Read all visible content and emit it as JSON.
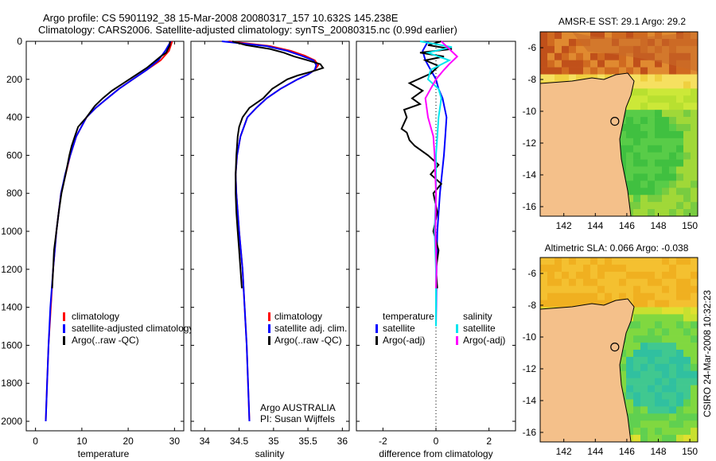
{
  "header": {
    "title_line1": "Argo profile: CS 5901192_38 15-Mar-2008 20080317_157 10.632S 145.238E",
    "title_line2": "Climatology: CARS2006. Satellite-adjusted climatology: synTS_20080315.nc (0.99d earlier)"
  },
  "colors": {
    "climatology": "#ff0000",
    "satellite": "#0000ff",
    "argo": "#000000",
    "temp_satellite_diff": "#0000ff",
    "sal_satellite_diff": "#00e5ee",
    "sal_argo_diff": "#ff00ff",
    "land": "#f4c08a"
  },
  "credit": {
    "institution": "Argo AUSTRALIA",
    "pi": "PI: Susan Wijffels",
    "timestamp": "CSIRO 24-Mar-2008 10:32:23"
  },
  "chart_data": [
    {
      "type": "line",
      "id": "temperature_profile",
      "xlabel": "temperature",
      "ylabel": "",
      "xlim": [
        -2,
        32
      ],
      "ylim": [
        2050,
        0
      ],
      "xticks": [
        0,
        10,
        20,
        30
      ],
      "yticks": [
        0,
        200,
        400,
        600,
        800,
        1000,
        1200,
        1400,
        1600,
        1800,
        2000
      ],
      "legend": [
        "climatology",
        "satellite-adjusted climatology",
        "Argo(..raw -QC)"
      ],
      "series": [
        {
          "name": "climatology",
          "color": "#ff0000",
          "depth": [
            0,
            50,
            100,
            150,
            200,
            250,
            300,
            350,
            400,
            500,
            600,
            700,
            800,
            1000,
            1200,
            1400,
            1600,
            1800,
            2000
          ],
          "values": [
            29.5,
            28.8,
            27.0,
            24.0,
            21.0,
            18.0,
            15.5,
            13.0,
            11.0,
            8.8,
            7.5,
            6.5,
            5.5,
            4.5,
            3.8,
            3.3,
            2.8,
            2.5,
            2.2
          ]
        },
        {
          "name": "satellite-adjusted climatology",
          "color": "#0000ff",
          "depth": [
            0,
            50,
            100,
            150,
            200,
            250,
            300,
            350,
            400,
            500,
            600,
            700,
            800,
            1000,
            1200,
            1400,
            1600,
            1800,
            2000
          ],
          "values": [
            29.2,
            28.0,
            26.5,
            24.0,
            21.0,
            18.0,
            15.5,
            13.0,
            11.0,
            8.8,
            7.5,
            6.4,
            5.5,
            4.5,
            3.8,
            3.2,
            2.8,
            2.5,
            2.2
          ]
        },
        {
          "name": "Argo(..raw -QC)",
          "color": "#000000",
          "depth": [
            0,
            20,
            60,
            80,
            100,
            140,
            180,
            220,
            260,
            300,
            340,
            400,
            450,
            500,
            550,
            600,
            700,
            800,
            900,
            1000,
            1100,
            1200,
            1300
          ],
          "values": [
            29.0,
            29.0,
            28.2,
            27.0,
            26.0,
            24.0,
            21.5,
            19.0,
            16.5,
            14.5,
            12.8,
            11.0,
            9.2,
            8.5,
            7.8,
            7.3,
            6.5,
            5.6,
            5.0,
            4.5,
            4.0,
            3.8,
            3.6
          ]
        }
      ]
    },
    {
      "type": "line",
      "id": "salinity_profile",
      "xlabel": "salinity",
      "xlim": [
        33.8,
        36.1
      ],
      "ylim": [
        2050,
        0
      ],
      "xticks": [
        34,
        34.5,
        35,
        35.5,
        36
      ],
      "legend": [
        "climatology",
        "satellite adj. clim.",
        "Argo(..raw -QC)"
      ],
      "series": [
        {
          "name": "climatology",
          "color": "#ff0000",
          "depth": [
            0,
            25,
            50,
            75,
            100,
            125,
            150,
            175,
            200,
            250,
            300,
            350,
            400,
            500,
            600,
            700,
            800,
            1000,
            1200,
            1400,
            1600,
            1800,
            2000
          ],
          "values": [
            34.35,
            34.95,
            35.25,
            35.45,
            35.6,
            35.65,
            35.6,
            35.5,
            35.35,
            35.1,
            34.9,
            34.75,
            34.62,
            34.52,
            34.47,
            34.45,
            34.46,
            34.5,
            34.55,
            34.58,
            34.61,
            34.63,
            34.65
          ]
        },
        {
          "name": "satellite adj. clim.",
          "color": "#0000ff",
          "depth": [
            0,
            25,
            50,
            75,
            100,
            125,
            150,
            175,
            200,
            250,
            300,
            350,
            400,
            500,
            600,
            700,
            800,
            1000,
            1200,
            1400,
            1600,
            1800,
            2000
          ],
          "values": [
            34.25,
            34.9,
            35.2,
            35.4,
            35.58,
            35.62,
            35.6,
            35.5,
            35.35,
            35.1,
            34.9,
            34.75,
            34.62,
            34.52,
            34.47,
            34.45,
            34.46,
            34.5,
            34.55,
            34.58,
            34.61,
            34.63,
            34.65
          ]
        },
        {
          "name": "Argo(..raw -QC)",
          "color": "#000000",
          "depth": [
            0,
            20,
            40,
            60,
            80,
            100,
            120,
            140,
            160,
            180,
            200,
            250,
            300,
            350,
            400,
            450,
            500,
            600,
            700,
            800,
            900,
            1000,
            1100,
            1200,
            1300
          ],
          "values": [
            34.4,
            34.6,
            34.95,
            35.15,
            35.3,
            35.5,
            35.68,
            35.72,
            35.55,
            35.35,
            35.2,
            34.98,
            34.85,
            34.65,
            34.55,
            34.5,
            34.48,
            34.46,
            34.45,
            34.45,
            34.46,
            34.48,
            34.5,
            34.52,
            34.54
          ]
        }
      ]
    },
    {
      "type": "line",
      "id": "difference_profile",
      "xlabel": "difference from climatology",
      "xlim": [
        -3,
        3
      ],
      "ylim": [
        2050,
        0
      ],
      "xticks": [
        -2,
        0,
        2
      ],
      "legend_titles": [
        "temperature",
        "salinity"
      ],
      "legend": [
        "satellite",
        "Argo(-adj)",
        "satellite",
        "Argo(-adj)"
      ],
      "series": [
        {
          "name": "temperature satellite",
          "color": "#0000ff",
          "depth": [
            0,
            50,
            100,
            150,
            200,
            250,
            300,
            400,
            500,
            600,
            800,
            1000,
            1200,
            1400,
            1500
          ],
          "values": [
            -0.3,
            -0.5,
            -0.4,
            -0.2,
            0,
            0.1,
            0.25,
            0.4,
            0.35,
            0.3,
            0.15,
            0.05,
            0.02,
            0.01,
            0
          ]
        },
        {
          "name": "temperature Argo(-adj)",
          "color": "#000000",
          "depth": [
            0,
            20,
            40,
            60,
            80,
            100,
            130,
            170,
            220,
            260,
            300,
            330,
            360,
            400,
            430,
            460,
            480,
            520,
            550,
            600,
            650,
            700,
            750,
            800,
            900,
            1000,
            1100,
            1200,
            1300
          ],
          "values": [
            0.2,
            -0.3,
            0.6,
            -0.6,
            0.3,
            -0.4,
            0.1,
            -0.2,
            -1.0,
            -0.5,
            -0.9,
            -0.6,
            -1.2,
            -1.1,
            -1.2,
            -1.3,
            -1.1,
            -1.0,
            -0.8,
            -0.3,
            0.1,
            -0.2,
            0.2,
            -0.1,
            0.05,
            -0.1,
            0.1,
            0.0,
            0.05
          ]
        },
        {
          "name": "salinity satellite",
          "color": "#00e5ee",
          "depth": [
            0,
            30,
            60,
            100,
            150,
            200,
            250,
            300,
            400,
            500,
            600,
            800,
            1000,
            1200,
            1400,
            1500
          ],
          "values": [
            -0.6,
            0.6,
            -0.3,
            0.5,
            -0.2,
            -0.3,
            0.1,
            0.2,
            0.1,
            0.05,
            0,
            0,
            -0.05,
            0,
            0,
            0
          ]
        },
        {
          "name": "salinity Argo(-adj)",
          "color": "#ff00ff",
          "depth": [
            0,
            40,
            80,
            120,
            150,
            200,
            250,
            300,
            400,
            500,
            600,
            800,
            1000,
            1200,
            1300
          ],
          "values": [
            0.2,
            0.5,
            0.8,
            0.5,
            0.3,
            0.0,
            -0.2,
            -0.4,
            -0.3,
            -0.1,
            -0.05,
            0,
            -0.02,
            0.02,
            0
          ]
        }
      ]
    },
    {
      "type": "heatmap",
      "id": "sst_map",
      "title": "AMSR-E SST: 29.1 Argo: 29.2",
      "xlim": [
        140.5,
        150.5
      ],
      "ylim": [
        -16.6,
        -5
      ],
      "xticks": [
        142,
        144,
        146,
        148,
        150
      ],
      "yticks": [
        -6,
        -8,
        -10,
        -12,
        -14,
        -16
      ],
      "float_lon": 145.238,
      "float_lat": -10.632
    },
    {
      "type": "heatmap",
      "id": "sla_map",
      "title": "Altimetric SLA: 0.066 Argo: -0.038",
      "xlim": [
        140.5,
        150.5
      ],
      "ylim": [
        -16.6,
        -5
      ],
      "xticks": [
        142,
        144,
        146,
        148,
        150
      ],
      "yticks": [
        -6,
        -8,
        -10,
        -12,
        -14,
        -16
      ],
      "float_lon": 145.238,
      "float_lat": -10.632
    }
  ]
}
